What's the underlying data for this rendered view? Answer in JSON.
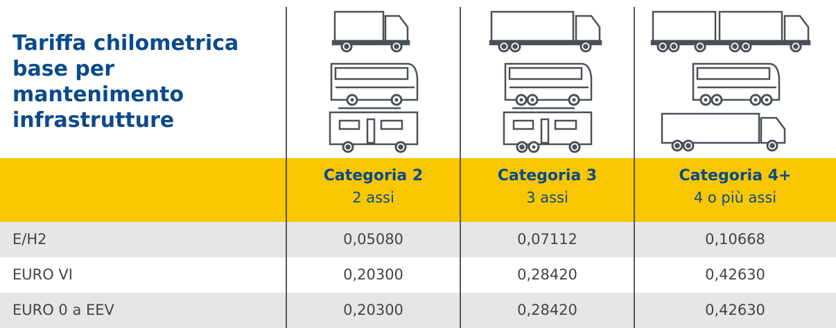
{
  "header": {
    "title": "Tariffa chilometrica base per mantenimento infrastrutture"
  },
  "columns": [
    {
      "name": "Categoria 2",
      "axles": "2 assi"
    },
    {
      "name": "Categoria 3",
      "axles": "3 assi"
    },
    {
      "name": "Categoria 4+",
      "axles": "4 o più assi"
    }
  ],
  "rows": [
    {
      "label": "E/H2",
      "values": [
        "0,05080",
        "0,07112",
        "0,10668"
      ]
    },
    {
      "label": "EURO VI",
      "values": [
        "0,20300",
        "0,28420",
        "0,42630"
      ]
    },
    {
      "label": "EURO 0 a EEV",
      "values": [
        "0,20300",
        "0,28420",
        "0,42630"
      ]
    }
  ]
}
